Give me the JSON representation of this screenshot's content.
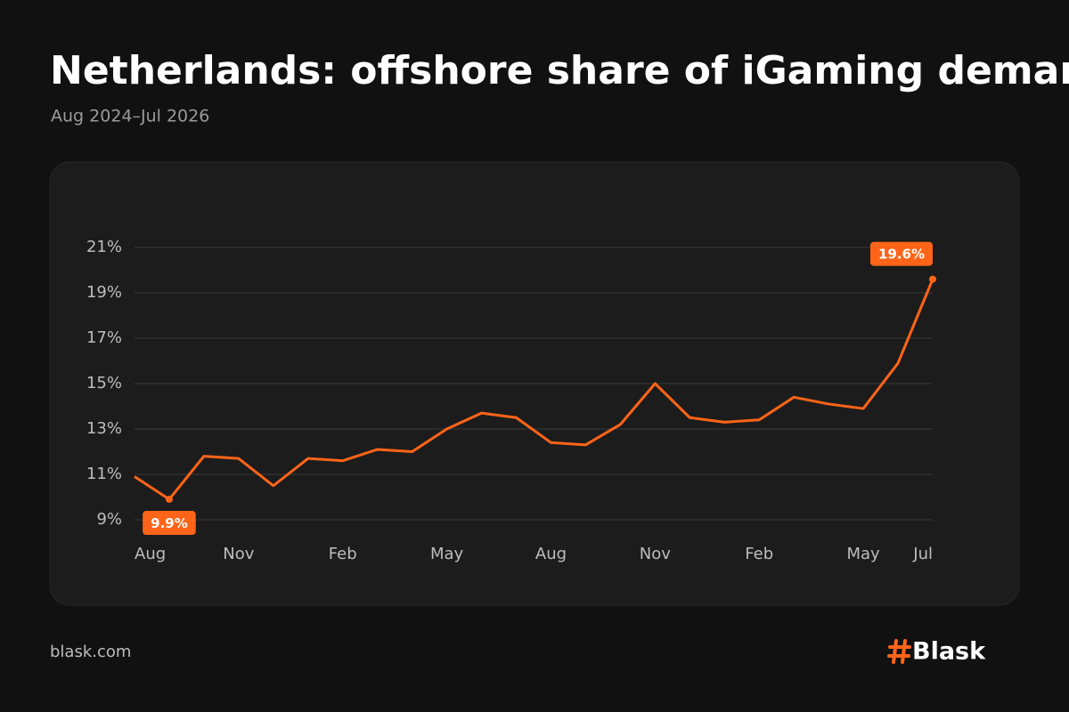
{
  "header": {
    "title": "Netherlands: offshore share of iGaming demand",
    "subtitle": "Aug 2024–Jul 2026"
  },
  "chart_data": {
    "type": "line",
    "categories": [
      "Aug",
      null,
      null,
      "Nov",
      null,
      null,
      "Feb",
      null,
      null,
      "May",
      null,
      null,
      "Aug",
      null,
      null,
      "Nov",
      null,
      null,
      "Feb",
      null,
      null,
      "May",
      null,
      "Jul"
    ],
    "series": [
      {
        "name": "Offshore share",
        "color": "#ff6418",
        "values": [
          10.9,
          9.9,
          11.8,
          11.7,
          10.5,
          11.7,
          11.6,
          12.1,
          12.0,
          13.0,
          13.7,
          13.5,
          12.4,
          12.3,
          13.2,
          15.0,
          13.5,
          13.3,
          13.4,
          14.4,
          14.1,
          13.9,
          15.9,
          19.6
        ],
        "value_labels": [
          null,
          "9.9%",
          null,
          null,
          null,
          null,
          null,
          null,
          null,
          null,
          null,
          null,
          null,
          null,
          null,
          null,
          null,
          null,
          null,
          null,
          null,
          null,
          null,
          "19.6%"
        ]
      }
    ],
    "ylim": [
      9,
      21
    ],
    "yticks": [
      {
        "value": 9,
        "label": "9%"
      },
      {
        "value": 11,
        "label": "11%"
      },
      {
        "value": 13,
        "label": "13%"
      },
      {
        "value": 15,
        "label": "15%"
      },
      {
        "value": 17,
        "label": "17%"
      },
      {
        "value": 19,
        "label": "19%"
      },
      {
        "value": 21,
        "label": "21%"
      }
    ],
    "grid": true
  },
  "footer": {
    "source": "blask.com",
    "brand": "Blask"
  }
}
